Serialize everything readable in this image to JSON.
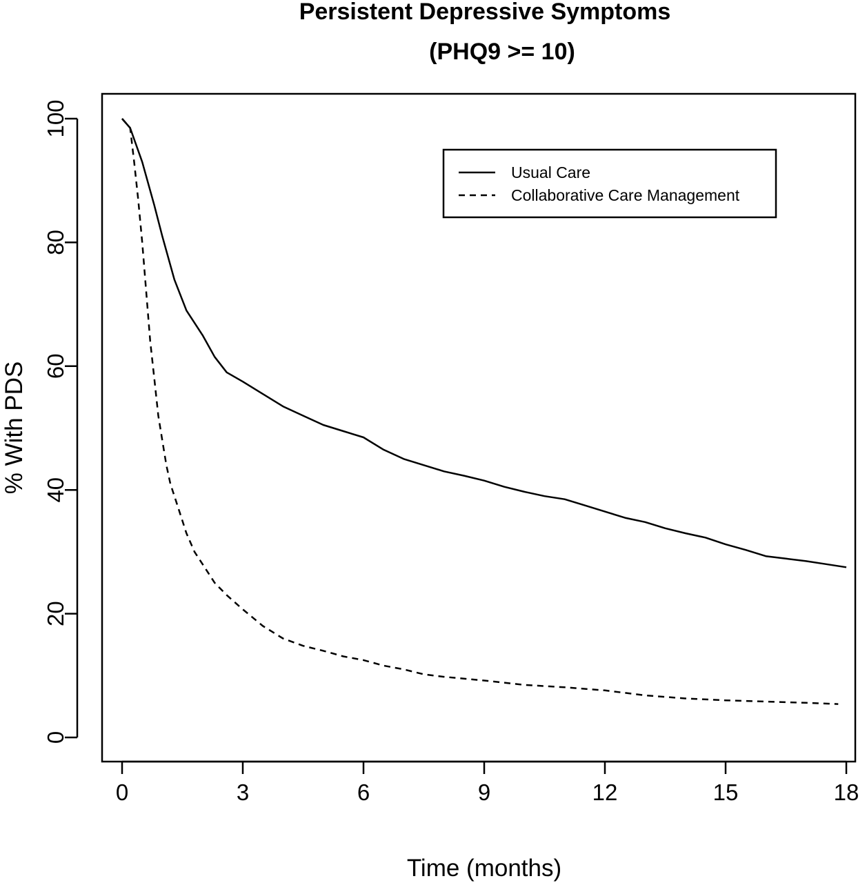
{
  "chart_data": {
    "type": "line",
    "title": "Persistent Depressive Symptoms",
    "subtitle": "(PHQ9 >= 10)",
    "xlabel": "Time (months)",
    "ylabel": "% With PDS",
    "xlim": [
      0,
      18
    ],
    "ylim": [
      0,
      100
    ],
    "x_ticks": [
      "0",
      "3",
      "6",
      "9",
      "12",
      "15",
      "18"
    ],
    "y_ticks": [
      "0",
      "20",
      "40",
      "60",
      "80",
      "100"
    ],
    "grid": false,
    "legend_position": "top-right",
    "series": [
      {
        "name": "Usual Care",
        "line_style": "solid",
        "color": "#000000",
        "x": [
          0,
          0.2,
          0.5,
          0.8,
          1.0,
          1.3,
          1.6,
          2.0,
          2.3,
          2.6,
          3.0,
          3.5,
          4.0,
          4.5,
          5.0,
          5.5,
          6.0,
          6.5,
          7.0,
          7.5,
          8.0,
          8.5,
          9.0,
          9.5,
          10.0,
          10.5,
          11.0,
          11.5,
          12.0,
          12.5,
          13.0,
          13.5,
          14.0,
          14.5,
          15.0,
          15.5,
          16.0,
          16.5,
          17.0,
          17.5,
          18.0
        ],
        "y": [
          100,
          98.5,
          93,
          86,
          81,
          74,
          69,
          65,
          61.5,
          59,
          57.5,
          55.5,
          53.5,
          52,
          50.5,
          49.5,
          48.5,
          46.5,
          45,
          44,
          43,
          42.3,
          41.5,
          40.5,
          39.7,
          39,
          38.5,
          37.5,
          36.5,
          35.5,
          34.8,
          33.8,
          33,
          32.3,
          31.2,
          30.3,
          29.3,
          28.9,
          28.5,
          28,
          27.5
        ]
      },
      {
        "name": "Collaborative Care Management",
        "line_style": "dashed",
        "color": "#000000",
        "x": [
          0,
          0.2,
          0.3,
          0.4,
          0.5,
          0.6,
          0.7,
          0.8,
          0.9,
          1.0,
          1.1,
          1.2,
          1.4,
          1.6,
          1.8,
          2.0,
          2.3,
          2.6,
          3.0,
          3.5,
          4.0,
          4.5,
          5.0,
          5.5,
          6.0,
          6.5,
          7.0,
          7.5,
          8.0,
          9.0,
          10.0,
          11.0,
          12.0,
          12.5,
          13.0,
          14.0,
          15.0,
          16.0,
          17.0,
          17.8
        ],
        "y": [
          100,
          98.5,
          93,
          87,
          80,
          72,
          64,
          58,
          52,
          48,
          44,
          41,
          37,
          33,
          30,
          28,
          25,
          23,
          20.7,
          18,
          16,
          14.8,
          14,
          13.1,
          12.5,
          11.6,
          11,
          10.2,
          9.8,
          9.2,
          8.5,
          8.1,
          7.6,
          7.2,
          6.8,
          6.3,
          6,
          5.8,
          5.6,
          5.4
        ]
      }
    ]
  }
}
